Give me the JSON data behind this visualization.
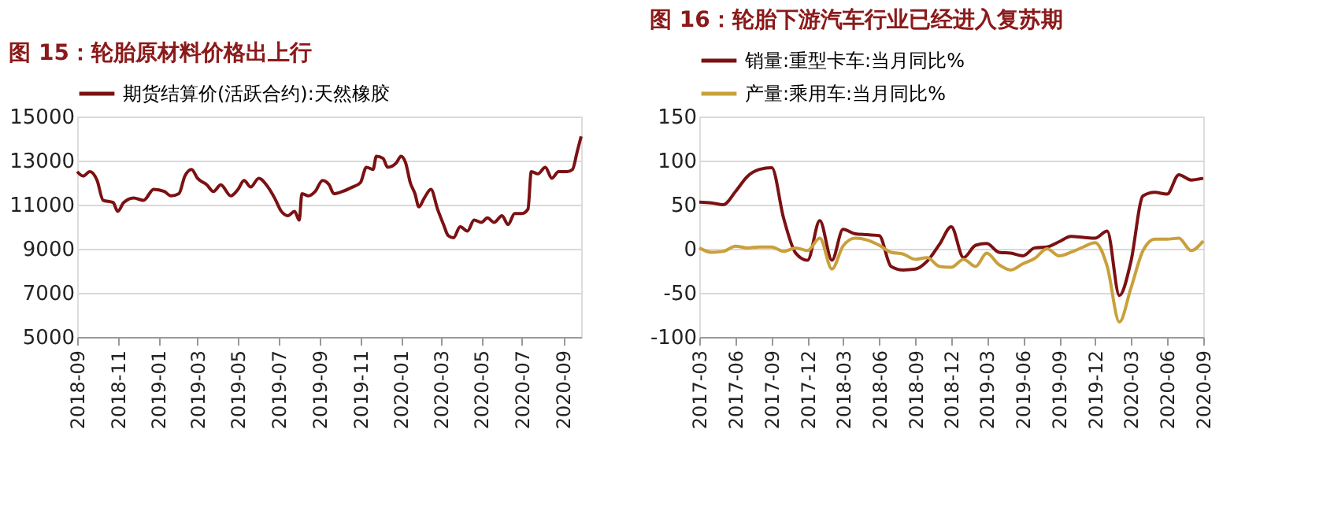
{
  "chart_data": [
    {
      "type": "line",
      "title": "图 15：轮胎原材料价格出上行",
      "grid": "y",
      "legend": "top",
      "x": [
        "2018-09-01",
        "2018-09-10",
        "2018-09-20",
        "2018-10-01",
        "2018-10-10",
        "2018-10-25",
        "2018-11-01",
        "2018-11-10",
        "2018-11-25",
        "2018-12-10",
        "2018-12-25",
        "2019-01-10",
        "2019-01-20",
        "2019-02-01",
        "2019-02-10",
        "2019-02-20",
        "2019-03-01",
        "2019-03-15",
        "2019-03-25",
        "2019-04-05",
        "2019-04-20",
        "2019-05-01",
        "2019-05-10",
        "2019-05-20",
        "2019-06-01",
        "2019-06-15",
        "2019-06-25",
        "2019-07-05",
        "2019-07-15",
        "2019-07-25",
        "2019-08-01",
        "2019-08-05",
        "2019-08-15",
        "2019-08-25",
        "2019-09-05",
        "2019-09-15",
        "2019-09-22",
        "2019-10-05",
        "2019-10-20",
        "2019-11-01",
        "2019-11-10",
        "2019-11-20",
        "2019-11-25",
        "2019-12-05",
        "2019-12-12",
        "2019-12-25",
        "2020-01-01",
        "2020-01-08",
        "2020-01-15",
        "2020-01-22",
        "2020-01-28",
        "2020-02-05",
        "2020-02-15",
        "2020-02-25",
        "2020-03-05",
        "2020-03-12",
        "2020-03-20",
        "2020-03-30",
        "2020-04-10",
        "2020-04-20",
        "2020-05-01",
        "2020-05-10",
        "2020-05-20",
        "2020-06-01",
        "2020-06-10",
        "2020-06-20",
        "2020-07-01",
        "2020-07-10",
        "2020-07-15",
        "2020-07-25",
        "2020-08-05",
        "2020-08-15",
        "2020-08-25",
        "2020-09-07",
        "2020-09-15",
        "2020-09-22",
        "2020-09-28"
      ],
      "series": [
        {
          "name": "期货结算价(活跃合约):天然橡胶",
          "color": "#7b1113",
          "values": [
            12500,
            12300,
            12500,
            12100,
            11200,
            11100,
            10700,
            11100,
            11300,
            11200,
            11700,
            11600,
            11400,
            11500,
            12300,
            12600,
            12200,
            11900,
            11600,
            11900,
            11400,
            11700,
            12100,
            11800,
            12200,
            11800,
            11300,
            10700,
            10500,
            10700,
            10300,
            11500,
            11400,
            11600,
            12100,
            11900,
            11500,
            11600,
            11800,
            12000,
            12700,
            12600,
            13200,
            13100,
            12700,
            12900,
            13200,
            12900,
            12000,
            11500,
            10900,
            11300,
            11700,
            10800,
            10100,
            9600,
            9500,
            10000,
            9800,
            10300,
            10200,
            10400,
            10200,
            10500,
            10100,
            10600,
            10600,
            10800,
            12500,
            12400,
            12700,
            12200,
            12500,
            12500,
            12600,
            13400,
            14100
          ]
        }
      ],
      "xlim": [
        "2018-09-01",
        "2020-09-28"
      ],
      "xticks": [
        "2018-09",
        "2018-11",
        "2019-01",
        "2019-03",
        "2019-05",
        "2019-07",
        "2019-09",
        "2019-11",
        "2020-01",
        "2020-03",
        "2020-05",
        "2020-07",
        "2020-09"
      ],
      "ylim": [
        5000,
        15000
      ],
      "yticks": [
        5000,
        7000,
        9000,
        11000,
        13000,
        15000
      ]
    },
    {
      "type": "line",
      "title": "图 16：轮胎下游汽车行业已经进入复苏期",
      "grid": "y",
      "legend": "top",
      "x": [
        "2017-03",
        "2017-04",
        "2017-05",
        "2017-06",
        "2017-07",
        "2017-08",
        "2017-09",
        "2017-10",
        "2017-11",
        "2017-12",
        "2018-01",
        "2018-02",
        "2018-03",
        "2018-04",
        "2018-05",
        "2018-06",
        "2018-07",
        "2018-08",
        "2018-09",
        "2018-10",
        "2018-11",
        "2018-12",
        "2019-01",
        "2019-02",
        "2019-03",
        "2019-04",
        "2019-05",
        "2019-06",
        "2019-07",
        "2019-08",
        "2019-09",
        "2019-10",
        "2019-11",
        "2019-12",
        "2020-01",
        "2020-02",
        "2020-03",
        "2020-04",
        "2020-05",
        "2020-06",
        "2020-07",
        "2020-08",
        "2020-09"
      ],
      "series": [
        {
          "name": "销量:重型卡车:当月同比%",
          "color": "#7b1113",
          "values": [
            53,
            52,
            50,
            65,
            82,
            90,
            92,
            35,
            -5,
            -13,
            32,
            -13,
            22,
            17,
            16,
            15,
            -20,
            -24,
            -23,
            -14,
            5,
            25,
            -10,
            4,
            6,
            -4,
            -5,
            -8,
            1,
            2,
            8,
            14,
            13,
            12,
            20,
            -53,
            -15,
            60,
            64,
            62,
            84,
            78,
            80
          ]
        },
        {
          "name": "产量:乘用车:当月同比%",
          "color": "#c9a03c",
          "values": [
            1,
            -4,
            -3,
            3,
            1,
            2,
            2,
            -3,
            1,
            -2,
            12,
            -23,
            3,
            12,
            10,
            4,
            -4,
            -6,
            -12,
            -10,
            -20,
            -21,
            -12,
            -20,
            -5,
            -18,
            -24,
            -17,
            -11,
            0,
            -8,
            -4,
            2,
            7,
            -20,
            -83,
            -45,
            -2,
            11,
            11,
            12,
            -2,
            9
          ]
        }
      ],
      "xlim": [
        "2017-03",
        "2020-09"
      ],
      "xticks": [
        "2017-03",
        "2017-06",
        "2017-09",
        "2017-12",
        "2018-03",
        "2018-06",
        "2018-09",
        "2018-12",
        "2019-03",
        "2019-06",
        "2019-09",
        "2019-12",
        "2020-03",
        "2020-06",
        "2020-09"
      ],
      "ylim": [
        -100,
        150
      ],
      "yticks": [
        -100,
        -50,
        0,
        50,
        100,
        150
      ]
    }
  ]
}
